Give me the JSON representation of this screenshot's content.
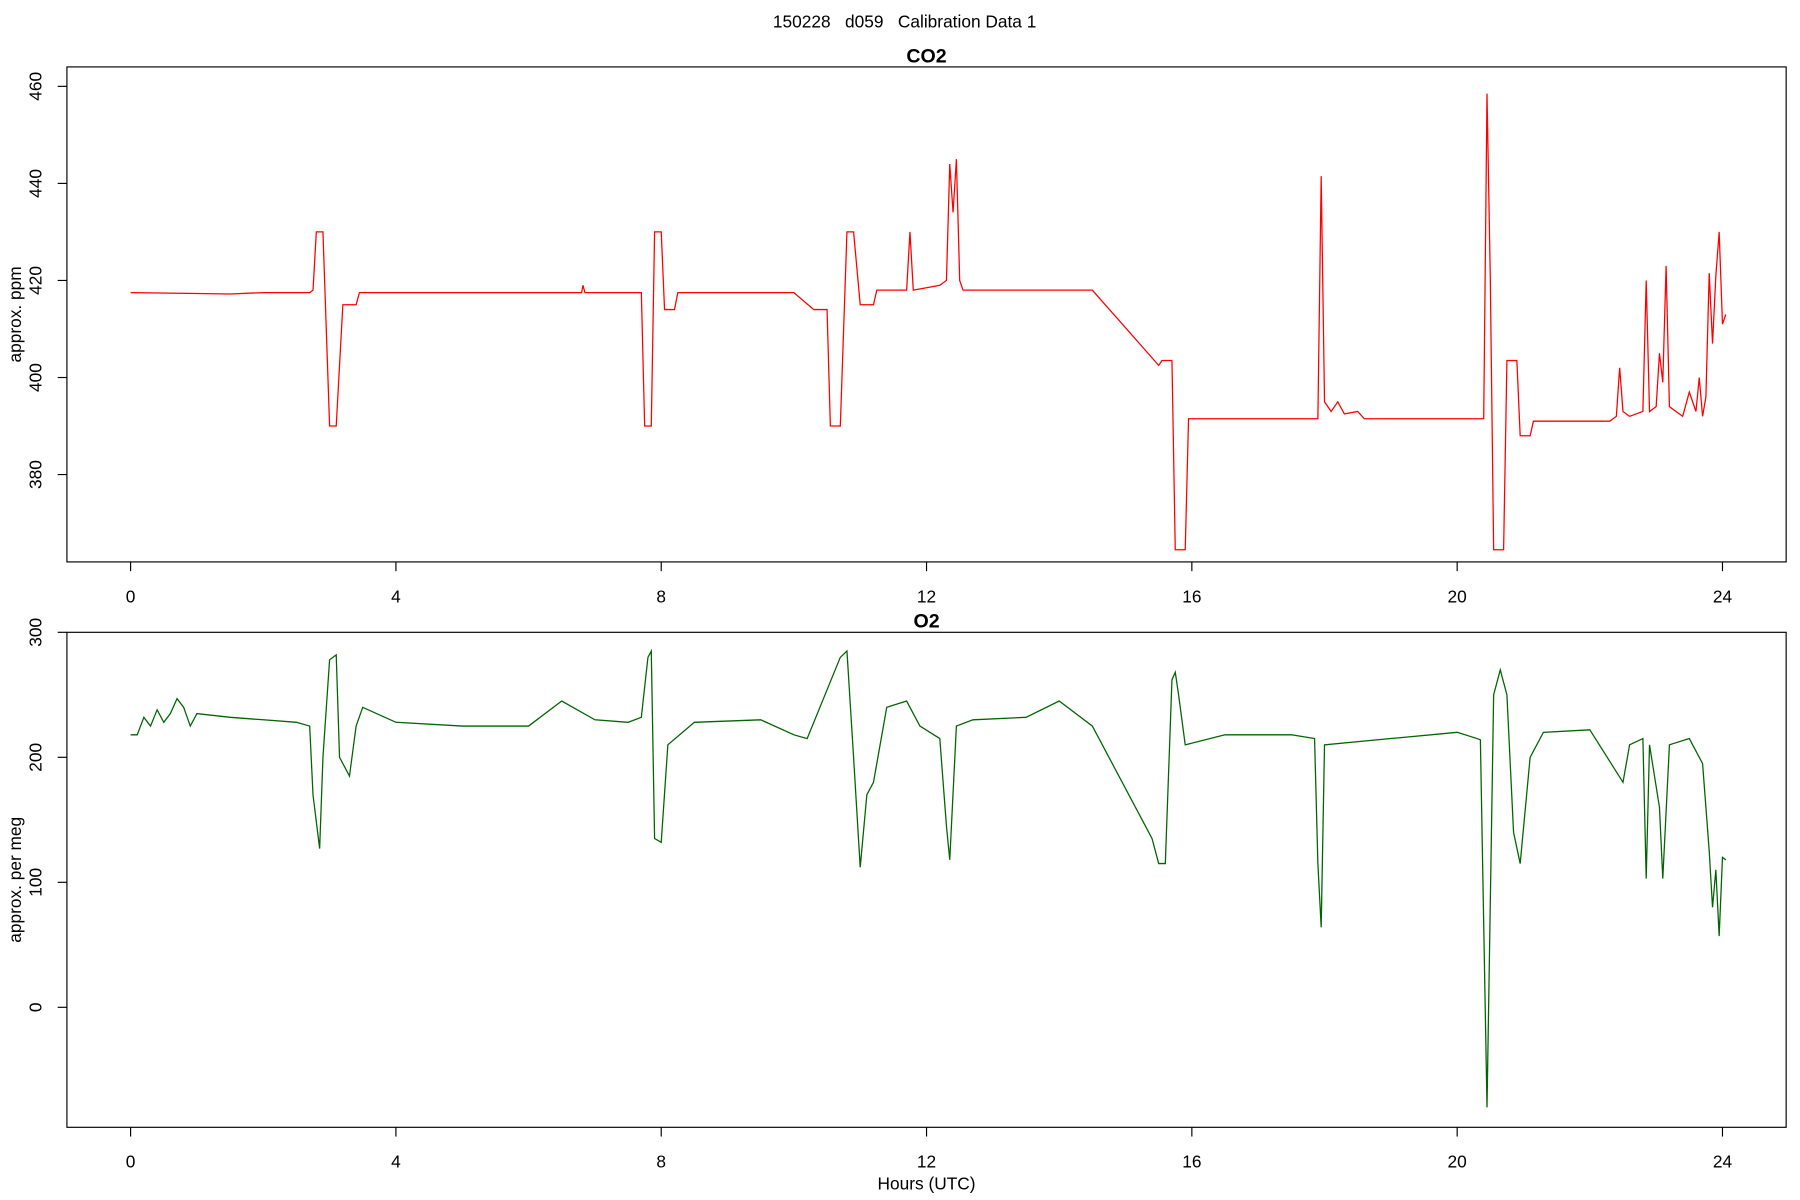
{
  "title": "150228   d059   Calibration Data 1",
  "chart_data": [
    {
      "type": "line",
      "title": "CO2",
      "ylabel": "approx. ppm",
      "color": "#ff0000",
      "xlim": [
        -0.96,
        24.96
      ],
      "xticks": [
        0,
        4,
        8,
        12,
        16,
        20,
        24
      ],
      "ylim": [
        362,
        464
      ],
      "yticks": [
        380,
        400,
        420,
        440,
        460
      ],
      "x": [
        0,
        1,
        1.5,
        2,
        2.7,
        2.75,
        2.8,
        2.9,
        3.0,
        3.1,
        3.2,
        3.4,
        3.45,
        5,
        6,
        6.8,
        6.82,
        6.85,
        7.7,
        7.75,
        7.85,
        7.9,
        8.0,
        8.05,
        8.2,
        8.25,
        10,
        10.3,
        10.5,
        10.55,
        10.7,
        10.8,
        10.9,
        11.0,
        11.2,
        11.25,
        11.7,
        11.75,
        11.8,
        12.0,
        12.2,
        12.3,
        12.35,
        12.4,
        12.45,
        12.5,
        12.55,
        14.5,
        15.5,
        15.55,
        15.7,
        15.75,
        15.9,
        15.95,
        17.9,
        17.95,
        18.0,
        18.1,
        18.2,
        18.3,
        18.5,
        18.6,
        20.4,
        20.45,
        20.5,
        20.55,
        20.7,
        20.75,
        20.9,
        20.95,
        21.1,
        21.15,
        22.3,
        22.4,
        22.45,
        22.5,
        22.6,
        22.8,
        22.85,
        22.9,
        23.0,
        23.05,
        23.1,
        23.15,
        23.2,
        23.4,
        23.5,
        23.6,
        23.65,
        23.7,
        23.75,
        23.8,
        23.85,
        23.9,
        23.95,
        24.0,
        24.05
      ],
      "values": [
        417.5,
        417.3,
        417.2,
        417.5,
        417.5,
        418,
        430,
        430,
        390,
        390,
        415,
        415,
        417.5,
        417.5,
        417.5,
        417.5,
        419,
        417.5,
        417.5,
        390,
        390,
        430,
        430,
        414,
        414,
        417.5,
        417.5,
        414,
        414,
        390,
        390,
        430,
        430,
        415,
        415,
        418,
        418,
        430,
        418,
        418.5,
        419,
        420,
        444,
        434,
        445,
        420,
        418,
        418,
        402.5,
        403.5,
        403.5,
        364.5,
        364.5,
        391.5,
        391.5,
        441.5,
        395,
        393,
        395,
        392.5,
        393,
        391.5,
        391.5,
        458.5,
        420,
        364.5,
        364.5,
        403.5,
        403.5,
        388,
        388,
        391,
        391,
        392,
        402,
        393,
        392,
        393,
        420,
        393,
        394,
        405,
        399,
        423,
        394,
        392,
        397,
        393,
        400,
        392,
        396,
        421.5,
        407,
        421,
        430,
        411,
        413
      ]
    },
    {
      "type": "line",
      "title": "O2",
      "ylabel": "approx. per meg",
      "xlabel": "Hours (UTC)",
      "color": "#006400",
      "xlim": [
        -0.96,
        24.96
      ],
      "xticks": [
        0,
        4,
        8,
        12,
        16,
        20,
        24
      ],
      "ylim": [
        -96,
        300
      ],
      "yticks": [
        0,
        100,
        200,
        300
      ],
      "x": [
        0,
        0.1,
        0.2,
        0.3,
        0.4,
        0.5,
        0.6,
        0.7,
        0.8,
        0.9,
        1,
        1.5,
        2,
        2.5,
        2.7,
        2.75,
        2.85,
        2.9,
        3.0,
        3.1,
        3.15,
        3.3,
        3.4,
        3.5,
        4,
        5,
        6,
        6.5,
        7,
        7.5,
        7.7,
        7.8,
        7.85,
        7.9,
        8.0,
        8.1,
        8.5,
        9.5,
        10,
        10.2,
        10.7,
        10.8,
        10.9,
        11.0,
        11.1,
        11.2,
        11.4,
        11.7,
        11.9,
        12.2,
        12.3,
        12.35,
        12.45,
        12.7,
        13.5,
        14,
        14.5,
        15.4,
        15.5,
        15.6,
        15.7,
        15.75,
        15.8,
        15.9,
        16.5,
        17.5,
        17.85,
        17.9,
        17.95,
        18.0,
        19,
        20,
        20.3,
        20.35,
        20.45,
        20.55,
        20.65,
        20.75,
        20.85,
        20.95,
        21.1,
        21.3,
        22,
        22.5,
        22.6,
        22.8,
        22.85,
        22.9,
        23.05,
        23.1,
        23.2,
        23.5,
        23.7,
        23.8,
        23.85,
        23.9,
        23.95,
        24.0,
        24.05
      ],
      "values": [
        218,
        218,
        232,
        225,
        238,
        228,
        235,
        247,
        240,
        225,
        235,
        232,
        230,
        228,
        225,
        170,
        127,
        200,
        278,
        282,
        200,
        185,
        225,
        240,
        228,
        225,
        225,
        245,
        230,
        228,
        232,
        280,
        285,
        135,
        132,
        210,
        228,
        230,
        218,
        215,
        280,
        285,
        200,
        112,
        170,
        180,
        240,
        245,
        225,
        215,
        145,
        118,
        225,
        230,
        232,
        245,
        225,
        135,
        115,
        115,
        262,
        268,
        250,
        210,
        218,
        218,
        215,
        115,
        64,
        210,
        215,
        220,
        215,
        214,
        -80,
        250,
        270,
        250,
        140,
        115,
        200,
        220,
        222,
        180,
        210,
        215,
        103,
        210,
        160,
        103,
        210,
        215,
        195,
        125,
        80,
        110,
        57,
        120,
        118
      ]
    }
  ]
}
